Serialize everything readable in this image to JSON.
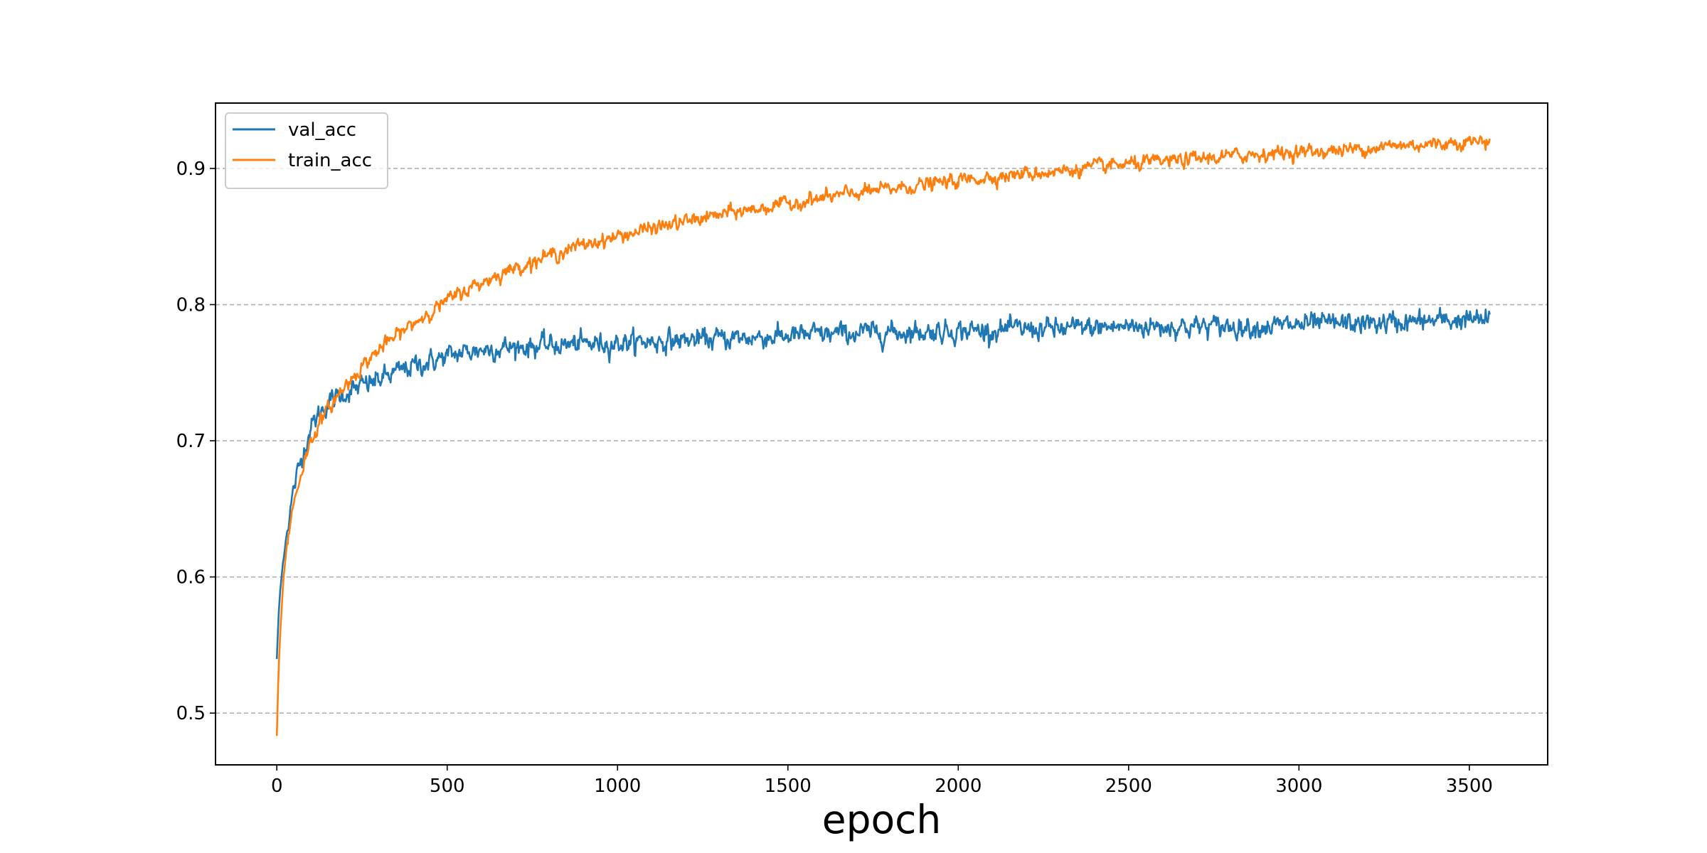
{
  "chart_data": {
    "type": "line",
    "title": "",
    "xlabel": "epoch",
    "ylabel": "",
    "xlim": [
      -180,
      3730
    ],
    "ylim": [
      0.462,
      0.948
    ],
    "xticks": [
      0,
      500,
      1000,
      1500,
      2000,
      2500,
      3000,
      3500
    ],
    "xtick_labels": [
      "0",
      "500",
      "1000",
      "1500",
      "2000",
      "2500",
      "3000",
      "3500"
    ],
    "yticks": [
      0.5,
      0.6,
      0.7,
      0.8,
      0.9
    ],
    "ytick_labels": [
      "0.5",
      "0.6",
      "0.7",
      "0.8",
      "0.9"
    ],
    "grid": {
      "y": true,
      "x": false,
      "style": "dashed"
    },
    "legend_position": "top-left",
    "n_epochs": 3560,
    "series": [
      {
        "name": "val_acc",
        "color": "#1f77b4",
        "noise": 0.0045,
        "x": [
          0,
          5,
          10,
          20,
          30,
          50,
          75,
          100,
          125,
          150,
          200,
          250,
          300,
          350,
          400,
          450,
          500,
          550,
          600,
          650,
          700,
          800,
          900,
          1000,
          1100,
          1200,
          1300,
          1400,
          1500,
          1600,
          1700,
          1800,
          1900,
          2000,
          2100,
          2200,
          2300,
          2400,
          2500,
          2600,
          2700,
          2800,
          2900,
          3000,
          3100,
          3200,
          3300,
          3400,
          3500,
          3560
        ],
        "values": [
          0.54,
          0.57,
          0.59,
          0.615,
          0.635,
          0.665,
          0.69,
          0.71,
          0.72,
          0.728,
          0.735,
          0.74,
          0.745,
          0.75,
          0.755,
          0.758,
          0.762,
          0.765,
          0.767,
          0.768,
          0.769,
          0.77,
          0.771,
          0.772,
          0.773,
          0.774,
          0.775,
          0.776,
          0.777,
          0.778,
          0.779,
          0.78,
          0.78,
          0.781,
          0.781,
          0.782,
          0.782,
          0.783,
          0.784,
          0.784,
          0.784,
          0.784,
          0.784,
          0.785,
          0.786,
          0.786,
          0.787,
          0.788,
          0.789,
          0.788
        ]
      },
      {
        "name": "train_acc",
        "color": "#ff7f0e",
        "noise": 0.003,
        "x": [
          0,
          5,
          10,
          20,
          30,
          50,
          75,
          100,
          125,
          150,
          200,
          250,
          300,
          350,
          400,
          450,
          500,
          550,
          600,
          650,
          700,
          800,
          900,
          1000,
          1100,
          1200,
          1300,
          1400,
          1500,
          1600,
          1700,
          1800,
          1900,
          2000,
          2100,
          2200,
          2300,
          2400,
          2500,
          2600,
          2700,
          2800,
          2900,
          3000,
          3100,
          3200,
          3300,
          3400,
          3500,
          3560
        ],
        "values": [
          0.483,
          0.53,
          0.56,
          0.6,
          0.625,
          0.655,
          0.68,
          0.7,
          0.713,
          0.723,
          0.74,
          0.755,
          0.767,
          0.777,
          0.786,
          0.795,
          0.803,
          0.81,
          0.816,
          0.822,
          0.827,
          0.836,
          0.844,
          0.85,
          0.856,
          0.861,
          0.866,
          0.87,
          0.874,
          0.878,
          0.882,
          0.885,
          0.888,
          0.891,
          0.894,
          0.896,
          0.898,
          0.901,
          0.903,
          0.905,
          0.907,
          0.909,
          0.911,
          0.912,
          0.913,
          0.915,
          0.917,
          0.918,
          0.92,
          0.92
        ]
      }
    ]
  }
}
